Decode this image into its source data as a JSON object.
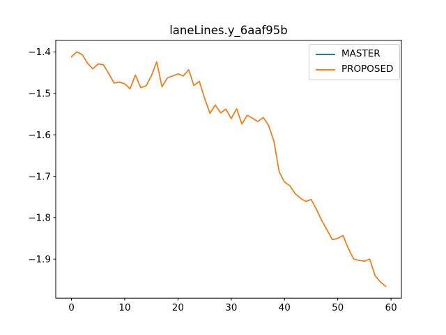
{
  "title": "laneLines.y_6aaf95b",
  "colors": {
    "background": "#ffffff",
    "axes": "#000000",
    "tick_text": "#000000",
    "legend_border": "#cccccc",
    "master_line": "#1f77b4",
    "proposed_line": "#ff7f0e"
  },
  "legend": {
    "position": "upper right",
    "items": [
      "MASTER",
      "PROPOSED"
    ]
  },
  "chart_data": {
    "type": "line",
    "title": "laneLines.y_6aaf95b",
    "xlabel": "",
    "ylabel": "",
    "grid": false,
    "legend_position": "upper right",
    "xlim": [
      -2.95,
      61.95
    ],
    "ylim": [
      -1.9943,
      -1.3717
    ],
    "xticks": [
      0,
      10,
      20,
      30,
      40,
      50,
      60
    ],
    "x_tick_labels": [
      "0",
      "10",
      "20",
      "30",
      "40",
      "50",
      "60"
    ],
    "yticks": [
      -1.4,
      -1.5,
      -1.6,
      -1.7,
      -1.8,
      -1.9
    ],
    "y_tick_labels": [
      "−1.4",
      "−1.5",
      "−1.6",
      "−1.7",
      "−1.8",
      "−1.9"
    ],
    "x": [
      0,
      1,
      2,
      3,
      4,
      5,
      6,
      7,
      8,
      9,
      10,
      11,
      12,
      13,
      14,
      15,
      16,
      17,
      18,
      19,
      20,
      21,
      22,
      23,
      24,
      25,
      26,
      27,
      28,
      29,
      30,
      31,
      32,
      33,
      34,
      35,
      36,
      37,
      38,
      39,
      40,
      41,
      42,
      43,
      44,
      45,
      46,
      47,
      48,
      49,
      50,
      51,
      52,
      53,
      54,
      55,
      56,
      57,
      58,
      59
    ],
    "series": [
      {
        "name": "MASTER",
        "color": "#1f77b4",
        "values": [
          -1.412,
          -1.4,
          -1.406,
          -1.427,
          -1.441,
          -1.429,
          -1.431,
          -1.452,
          -1.475,
          -1.473,
          -1.477,
          -1.489,
          -1.456,
          -1.486,
          -1.482,
          -1.458,
          -1.424,
          -1.484,
          -1.463,
          -1.458,
          -1.453,
          -1.458,
          -1.443,
          -1.481,
          -1.471,
          -1.512,
          -1.548,
          -1.528,
          -1.547,
          -1.538,
          -1.561,
          -1.537,
          -1.574,
          -1.553,
          -1.56,
          -1.568,
          -1.558,
          -1.577,
          -1.615,
          -1.689,
          -1.714,
          -1.723,
          -1.742,
          -1.753,
          -1.761,
          -1.756,
          -1.78,
          -1.807,
          -1.83,
          -1.853,
          -1.85,
          -1.843,
          -1.875,
          -1.9,
          -1.903,
          -1.905,
          -1.9,
          -1.94,
          -1.955,
          -1.966
        ]
      },
      {
        "name": "PROPOSED",
        "color": "#ff7f0e",
        "values": [
          -1.412,
          -1.4,
          -1.406,
          -1.427,
          -1.441,
          -1.429,
          -1.431,
          -1.452,
          -1.475,
          -1.473,
          -1.477,
          -1.489,
          -1.456,
          -1.486,
          -1.482,
          -1.458,
          -1.424,
          -1.484,
          -1.463,
          -1.458,
          -1.453,
          -1.458,
          -1.443,
          -1.481,
          -1.471,
          -1.512,
          -1.548,
          -1.528,
          -1.547,
          -1.538,
          -1.561,
          -1.537,
          -1.574,
          -1.553,
          -1.56,
          -1.568,
          -1.558,
          -1.577,
          -1.615,
          -1.689,
          -1.714,
          -1.723,
          -1.742,
          -1.753,
          -1.761,
          -1.756,
          -1.78,
          -1.807,
          -1.83,
          -1.853,
          -1.85,
          -1.843,
          -1.875,
          -1.9,
          -1.903,
          -1.905,
          -1.9,
          -1.94,
          -1.955,
          -1.966
        ]
      }
    ]
  }
}
